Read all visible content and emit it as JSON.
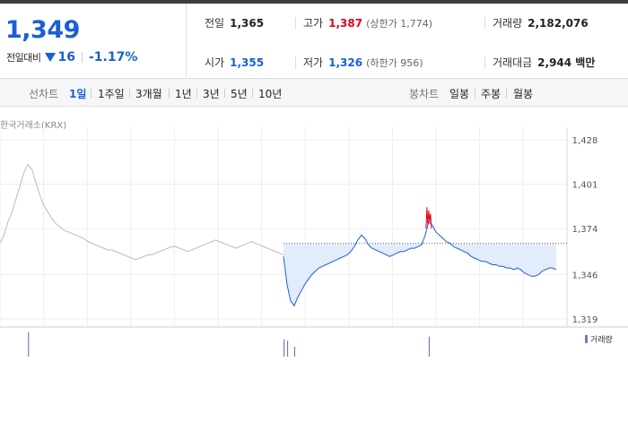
{
  "summary": {
    "current_price": "1,349",
    "compare_label": "전일대비",
    "change_value": "16",
    "change_rate": "-1.17%",
    "prev_close": {
      "label": "전일",
      "value": "1,365"
    },
    "high": {
      "label": "고가",
      "value": "1,387",
      "sub": "(상한가 1,774)"
    },
    "volume": {
      "label": "거래량",
      "value": "2,182,076"
    },
    "open": {
      "label": "시가",
      "value": "1,355"
    },
    "low": {
      "label": "저가",
      "value": "1,326",
      "sub": "(하한가 956)"
    },
    "trade_amount": {
      "label": "거래대금",
      "value": "2,944 백만"
    }
  },
  "period_bar": {
    "line_label": "선차트",
    "line_periods": [
      "1일",
      "1주일",
      "3개월",
      "1년",
      "3년",
      "5년",
      "10년"
    ],
    "active_period": "1일",
    "candle_label": "봉차트",
    "candle_periods": [
      "일봉",
      "주봉",
      "월봉"
    ]
  },
  "chart": {
    "source_label": "한국거래소(KRX)",
    "volume_legend": "거래량",
    "colors": {
      "up": "#e0001a",
      "down": "#1a5fd6",
      "prev_day": "#bbbbbb",
      "fill": "#e2ecfa",
      "volume": "#8a6fbf"
    }
  },
  "chart_data": {
    "type": "line",
    "y_ticks": [
      "1,428",
      "1,401",
      "1,374",
      "1,346",
      "1,319"
    ],
    "ylim": [
      1319,
      1428
    ],
    "reference_price": 1365,
    "previous_day": [
      1365,
      1370,
      1378,
      1384,
      1392,
      1400,
      1408,
      1413,
      1410,
      1402,
      1394,
      1388,
      1384,
      1380,
      1377,
      1375,
      1373,
      1372,
      1371,
      1370,
      1369,
      1368,
      1366,
      1365,
      1364,
      1363,
      1362,
      1361,
      1361,
      1360,
      1359,
      1358,
      1357,
      1356,
      1355,
      1356,
      1357,
      1358,
      1358,
      1359,
      1360,
      1361,
      1362,
      1363,
      1363,
      1362,
      1361,
      1360,
      1361,
      1362,
      1363,
      1364,
      1365,
      1366,
      1367,
      1366,
      1365,
      1364,
      1363,
      1362,
      1363,
      1364,
      1365,
      1366,
      1365,
      1364,
      1363,
      1362,
      1361,
      1360,
      1359,
      1358
    ],
    "today": [
      1357,
      1340,
      1330,
      1327,
      1332,
      1336,
      1340,
      1343,
      1346,
      1348,
      1350,
      1351,
      1352,
      1353,
      1354,
      1355,
      1356,
      1357,
      1358,
      1360,
      1363,
      1367,
      1370,
      1368,
      1364,
      1362,
      1361,
      1360,
      1359,
      1358,
      1357,
      1358,
      1359,
      1360,
      1360,
      1361,
      1362,
      1362,
      1363,
      1364,
      1370,
      1378,
      1376,
      1372,
      1370,
      1368,
      1366,
      1365,
      1363,
      1362,
      1361,
      1360,
      1359,
      1357,
      1356,
      1355,
      1354,
      1354,
      1353,
      1352,
      1352,
      1351,
      1351,
      1350,
      1350,
      1349,
      1350,
      1349,
      1347,
      1346,
      1345,
      1345,
      1346,
      1348,
      1349,
      1350,
      1350,
      1349
    ],
    "today_up_range": [
      1374,
      1387
    ],
    "volume_spikes": [
      {
        "series": "previous_day",
        "index": 7,
        "level": 0.85
      },
      {
        "series": "today",
        "index": 0,
        "level": 0.6
      },
      {
        "series": "today",
        "index": 1,
        "level": 0.55
      },
      {
        "series": "today",
        "index": 3,
        "level": 0.35
      },
      {
        "series": "today",
        "index": 41,
        "level": 0.7
      }
    ]
  }
}
